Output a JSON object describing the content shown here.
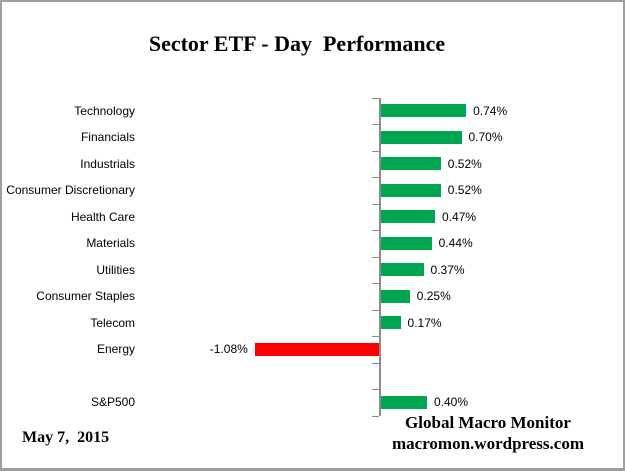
{
  "title": "Sector ETF - Day  Performance",
  "footer": {
    "date": "May 7,  2015",
    "source_line1": "Global Macro Monitor",
    "source_line2": "macromon.wordpress.com"
  },
  "colors": {
    "positive_bar": "#00A64F",
    "negative_bar": "#FF0000",
    "axis": "#8C8C8C",
    "frame_border": "#9E9E9E",
    "text": "#000000"
  },
  "chart_data": {
    "type": "bar",
    "orientation": "horizontal",
    "title": "Sector ETF - Day  Performance",
    "xlabel": "",
    "ylabel": "",
    "grid": false,
    "legend": null,
    "value_unit": "percent",
    "categories": [
      "Technology",
      "Financials",
      "Industrials",
      "Consumer Discretionary",
      "Health Care",
      "Materials",
      "Utilities",
      "Consumer Staples",
      "Telecom",
      "Energy",
      "",
      "S&P500"
    ],
    "values": [
      0.74,
      0.7,
      0.52,
      0.52,
      0.47,
      0.44,
      0.37,
      0.25,
      0.17,
      -1.08,
      null,
      0.4
    ],
    "value_labels": [
      "0.74%",
      "0.70%",
      "0.52%",
      "0.52%",
      "0.47%",
      "0.44%",
      "0.37%",
      "0.25%",
      "0.17%",
      "-1.08%",
      "",
      "0.40%"
    ],
    "notes": "Blank separator row between Energy and S&P500; negative values drawn in red extending left of the zero axis, positives in green extending right."
  }
}
